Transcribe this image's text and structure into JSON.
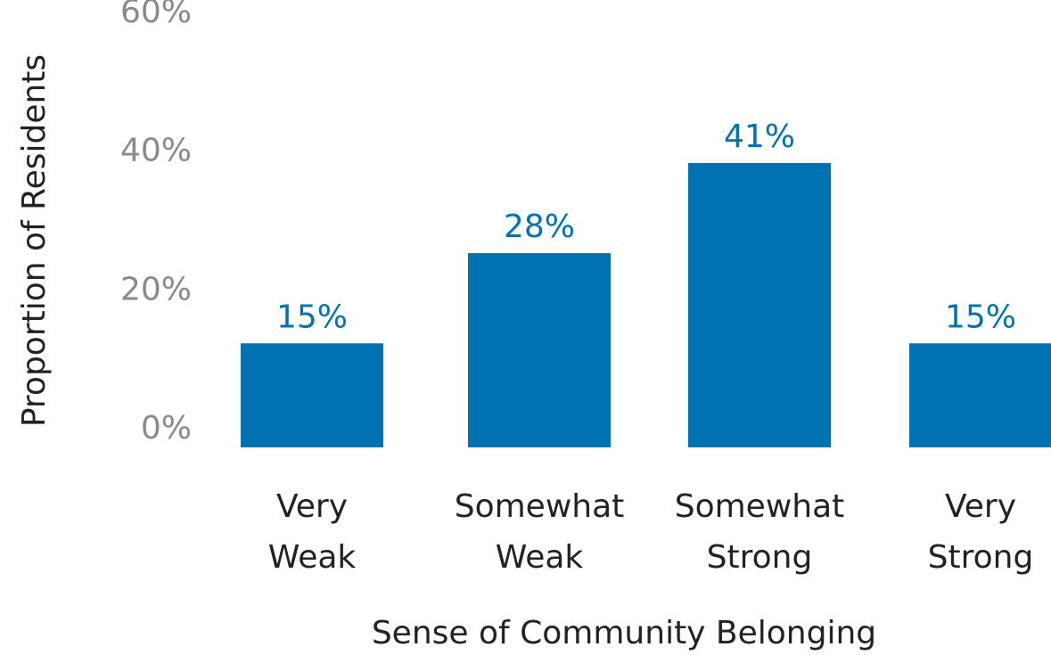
{
  "chart_data": {
    "type": "bar",
    "categories": [
      [
        "Very",
        "Weak"
      ],
      [
        "Somewhat",
        "Weak"
      ],
      [
        "Somewhat",
        "Strong"
      ],
      [
        "Very",
        "Strong"
      ]
    ],
    "values": [
      15,
      28,
      41,
      15
    ],
    "data_labels": [
      "15%",
      "28%",
      "41%",
      "15%"
    ],
    "xlabel": "Sense of Community Belonging",
    "ylabel": "Proportion of Residents",
    "ylim": [
      0,
      60
    ],
    "y_ticks": [
      0,
      20,
      40,
      60
    ],
    "y_tick_labels": [
      "0%",
      "20%",
      "40%",
      "60%"
    ],
    "grid": false,
    "bar_color": "#0072b2",
    "data_label_color": "#0072b2",
    "tick_label_color": "#8a8a8a",
    "text_color": "#222222"
  }
}
